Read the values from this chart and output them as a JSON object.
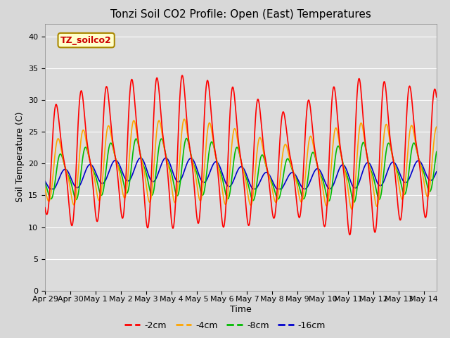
{
  "title": "Tonzi Soil CO2 Profile: Open (East) Temperatures",
  "xlabel": "Time",
  "ylabel": "Soil Temperature (C)",
  "ylim": [
    0,
    42
  ],
  "yticks": [
    0,
    5,
    10,
    15,
    20,
    25,
    30,
    35,
    40
  ],
  "legend_label": "TZ_soilco2",
  "series_labels": [
    "-2cm",
    "-4cm",
    "-8cm",
    "-16cm"
  ],
  "series_colors": [
    "#ff0000",
    "#ffa500",
    "#00bb00",
    "#0000cc"
  ],
  "fig_bg": "#d8d8d8",
  "plot_bg": "#dcdcdc",
  "grid_color": "#ffffff",
  "title_fontsize": 11,
  "axis_fontsize": 9,
  "tick_fontsize": 8,
  "legend_fontsize": 9
}
